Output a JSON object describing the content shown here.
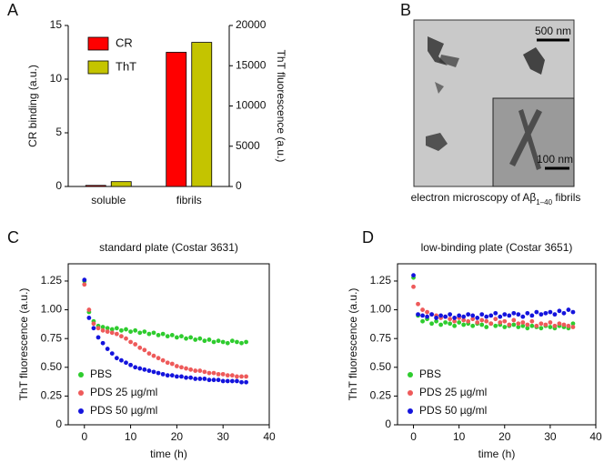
{
  "chart_data": [
    {
      "type": "bar",
      "panel_label": "A",
      "ylabel": "CR binding (a.u.)",
      "y2label": "ThT fluorescence (a.u.)",
      "categories": [
        "soluble",
        "fibrils"
      ],
      "series": [
        {
          "name": "CR",
          "color": "#ff0000",
          "values": [
            0.1,
            12.5
          ]
        },
        {
          "name": "ThT",
          "color": "#c4c400",
          "values": [
            600,
            17900
          ],
          "axis": "y2"
        }
      ],
      "ylim": [
        0,
        15
      ],
      "yticks": [
        0,
        5,
        10,
        15
      ],
      "y2lim": [
        0,
        20000
      ],
      "y2ticks": [
        0,
        5000,
        10000,
        15000,
        20000
      ],
      "legend": "upper left"
    },
    {
      "type": "image",
      "panel_label": "B",
      "scale_bars": [
        "500 nm",
        "100 nm"
      ],
      "caption": {
        "text": "electron microscopy of Aβ",
        "subscript": "1–40",
        "suffix": " fibrils"
      }
    },
    {
      "type": "scatter",
      "panel_label": "C",
      "title": "standard plate (Costar 3631)",
      "xlabel": "time (h)",
      "ylabel": "ThT fluorescence (a.u.)",
      "x": [
        0,
        1,
        2,
        3,
        4,
        5,
        6,
        7,
        8,
        9,
        10,
        11,
        12,
        13,
        14,
        15,
        16,
        17,
        18,
        19,
        20,
        21,
        22,
        23,
        24,
        25,
        26,
        27,
        28,
        29,
        30,
        31,
        32,
        33,
        34,
        35
      ],
      "series": [
        {
          "name": "PBS",
          "color": "#2ecc2e",
          "values": [
            1.25,
            0.98,
            0.9,
            0.86,
            0.85,
            0.84,
            0.83,
            0.84,
            0.82,
            0.83,
            0.81,
            0.82,
            0.8,
            0.81,
            0.79,
            0.8,
            0.78,
            0.79,
            0.77,
            0.78,
            0.76,
            0.77,
            0.75,
            0.76,
            0.74,
            0.75,
            0.73,
            0.74,
            0.72,
            0.73,
            0.72,
            0.71,
            0.73,
            0.72,
            0.71,
            0.72
          ]
        },
        {
          "name": "PDS 25 µg/ml",
          "color": "#ee5a5a",
          "values": [
            1.22,
            1.0,
            0.88,
            0.84,
            0.82,
            0.81,
            0.8,
            0.79,
            0.77,
            0.75,
            0.72,
            0.7,
            0.67,
            0.65,
            0.62,
            0.6,
            0.58,
            0.56,
            0.54,
            0.53,
            0.51,
            0.5,
            0.49,
            0.48,
            0.47,
            0.47,
            0.46,
            0.45,
            0.45,
            0.44,
            0.44,
            0.43,
            0.43,
            0.42,
            0.42,
            0.42
          ]
        },
        {
          "name": "PDS 50 µg/ml",
          "color": "#1414dd",
          "values": [
            1.26,
            0.93,
            0.84,
            0.76,
            0.71,
            0.66,
            0.62,
            0.58,
            0.56,
            0.54,
            0.52,
            0.5,
            0.49,
            0.48,
            0.47,
            0.46,
            0.45,
            0.44,
            0.43,
            0.43,
            0.42,
            0.42,
            0.41,
            0.41,
            0.4,
            0.4,
            0.4,
            0.39,
            0.39,
            0.39,
            0.38,
            0.38,
            0.38,
            0.38,
            0.37,
            0.37
          ]
        }
      ],
      "xlim": [
        -3.5,
        40
      ],
      "xticks": [
        0,
        10,
        20,
        30,
        40
      ],
      "ylim": [
        0,
        1.4
      ],
      "yticks": [
        0,
        0.25,
        {
          "value": 0.5,
          "label": "0.50"
        },
        0.75,
        {
          "value": 1,
          "label": "1.00"
        },
        1.25
      ],
      "legend": "lower left"
    },
    {
      "type": "scatter",
      "panel_label": "D",
      "title": "low-binding plate (Costar 3651)",
      "xlabel": "time (h)",
      "ylabel": "ThT fluorescence (a.u.)",
      "x": [
        0,
        1,
        2,
        3,
        4,
        5,
        6,
        7,
        8,
        9,
        10,
        11,
        12,
        13,
        14,
        15,
        16,
        17,
        18,
        19,
        20,
        21,
        22,
        23,
        24,
        25,
        26,
        27,
        28,
        29,
        30,
        31,
        32,
        33,
        34,
        35
      ],
      "series": [
        {
          "name": "PBS",
          "color": "#2ecc2e",
          "values": [
            1.28,
            0.95,
            0.9,
            0.92,
            0.88,
            0.9,
            0.87,
            0.89,
            0.88,
            0.86,
            0.89,
            0.87,
            0.88,
            0.86,
            0.88,
            0.87,
            0.85,
            0.88,
            0.86,
            0.87,
            0.85,
            0.86,
            0.87,
            0.85,
            0.86,
            0.84,
            0.86,
            0.85,
            0.84,
            0.86,
            0.85,
            0.84,
            0.86,
            0.85,
            0.84,
            0.88
          ]
        },
        {
          "name": "PDS 25 µg/ml",
          "color": "#ee5a5a",
          "values": [
            1.2,
            1.05,
            1.0,
            0.98,
            0.96,
            0.95,
            0.93,
            0.94,
            0.92,
            0.9,
            0.93,
            0.91,
            0.9,
            0.92,
            0.89,
            0.91,
            0.9,
            0.88,
            0.92,
            0.89,
            0.9,
            0.87,
            0.91,
            0.88,
            0.89,
            0.87,
            0.9,
            0.86,
            0.88,
            0.87,
            0.89,
            0.86,
            0.88,
            0.87,
            0.86,
            0.85
          ]
        },
        {
          "name": "PDS 50 µg/ml",
          "color": "#1414dd",
          "values": [
            1.3,
            0.96,
            0.95,
            0.94,
            0.96,
            0.93,
            0.95,
            0.94,
            0.96,
            0.93,
            0.95,
            0.94,
            0.96,
            0.95,
            0.93,
            0.96,
            0.94,
            0.95,
            0.97,
            0.94,
            0.96,
            0.95,
            0.97,
            0.96,
            0.94,
            0.97,
            0.95,
            0.98,
            0.96,
            0.97,
            0.98,
            0.96,
            0.99,
            0.97,
            1.0,
            0.98
          ]
        }
      ],
      "xlim": [
        -3.5,
        40
      ],
      "xticks": [
        0,
        10,
        20,
        30,
        40
      ],
      "ylim": [
        0,
        1.4
      ],
      "yticks": [
        0,
        0.25,
        {
          "value": 0.5,
          "label": "0.50"
        },
        0.75,
        {
          "value": 1,
          "label": "1.00"
        },
        1.25
      ],
      "legend": "lower left"
    }
  ]
}
